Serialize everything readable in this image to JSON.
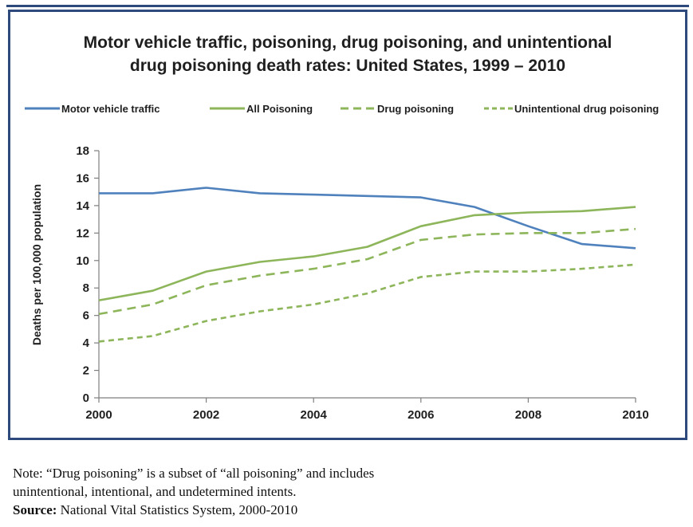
{
  "title_lines": [
    "Motor vehicle traffic, poisoning, drug poisoning, and unintentional",
    "drug poisoning death rates: United States, 1999 – 2010"
  ],
  "note": {
    "line1": "Note: “Drug poisoning” is a subset of “all poisoning” and includes",
    "line2": "unintentional, intentional, and undetermined intents.",
    "source_label": "Source:",
    "source_text": " National Vital Statistics System, 2000-2010"
  },
  "colors": {
    "frame": "#2e4a7d",
    "motor": "#4f81bd",
    "poison": "#8db55a",
    "axis": "#7f7f7f"
  },
  "chart_data": {
    "type": "line",
    "title": "Motor vehicle traffic, poisoning, drug poisoning, and unintentional drug poisoning death rates: United States, 1999 – 2010",
    "xlabel": "",
    "ylabel": "Deaths per 100,000 population",
    "x": [
      2000,
      2001,
      2002,
      2003,
      2004,
      2005,
      2006,
      2007,
      2008,
      2009,
      2010
    ],
    "xlim": [
      2000,
      2010
    ],
    "ylim": [
      0,
      18
    ],
    "xticks": [
      "2000",
      "2002",
      "2004",
      "2006",
      "2008",
      "2010"
    ],
    "yticks": [
      "0",
      "2",
      "4",
      "6",
      "8",
      "10",
      "12",
      "14",
      "16",
      "18"
    ],
    "grid": false,
    "legend_position": "top",
    "series": [
      {
        "name": "Motor vehicle traffic",
        "style": "solid",
        "color": "#4f81bd",
        "values": [
          14.9,
          14.9,
          15.3,
          14.9,
          14.8,
          14.7,
          14.6,
          13.9,
          12.5,
          11.2,
          10.9
        ]
      },
      {
        "name": "All Poisoning",
        "style": "solid",
        "color": "#8db55a",
        "values": [
          7.1,
          7.8,
          9.2,
          9.9,
          10.3,
          11.0,
          12.5,
          13.3,
          13.5,
          13.6,
          13.9
        ]
      },
      {
        "name": "Drug poisoning",
        "style": "dashed",
        "color": "#8db55a",
        "values": [
          6.1,
          6.8,
          8.2,
          8.9,
          9.4,
          10.1,
          11.5,
          11.9,
          12.0,
          12.0,
          12.3
        ]
      },
      {
        "name": "Unintentional drug poisoning",
        "style": "shortdash",
        "color": "#8db55a",
        "values": [
          4.1,
          4.5,
          5.6,
          6.3,
          6.8,
          7.6,
          8.8,
          9.2,
          9.2,
          9.4,
          9.7
        ]
      }
    ]
  }
}
